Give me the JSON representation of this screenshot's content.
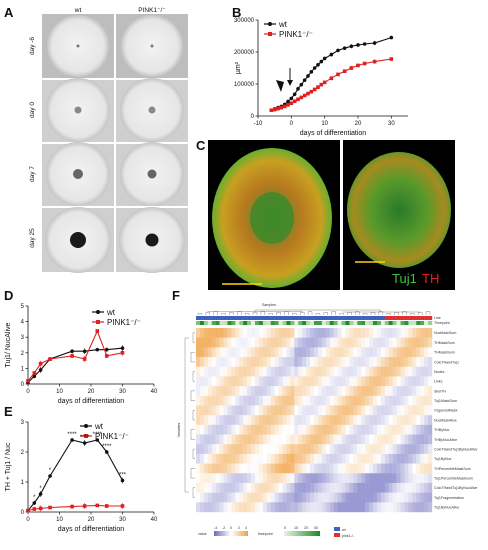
{
  "panel_labels": {
    "a": "A",
    "b": "B",
    "c": "C",
    "d": "D",
    "e": "E",
    "f": "F"
  },
  "panel_a": {
    "columns": [
      "wt",
      "PINK1⁻/⁻"
    ],
    "rows": [
      "day -6",
      "day 0",
      "day 7",
      "day 25"
    ]
  },
  "panel_c": {
    "label_green": "Tuj1",
    "label_red": "TH",
    "green": "#3cc43c",
    "red": "#e82020"
  },
  "panel_f": {
    "samples_label": "Samples",
    "variables_label": "Variables",
    "row_labels": [
      "NucMaskSum",
      "THMaskSum",
      "THMaskSum",
      "ColoTHandTuj1",
      "Nodes",
      "Links",
      "SkelTH",
      "Tuj1MaskSum",
      "OrganoidMask",
      "NucMaskAlive",
      "THByNuc",
      "THByNucAlive",
      "ColoTHandTuj1ByNucAlive",
      "Tuj1ByNuc",
      "THPercentileMaskSum",
      "Tuj1PercentileMaskSum",
      "ColoTHandTuj1ByNucAlive",
      "Tuj1Fragmentation",
      "Tuj1ByNucAlive"
    ],
    "annotation_labels": [
      "Line",
      "Timepoint"
    ],
    "value_legend": {
      "label": "value",
      "ticks": [
        "-4",
        "-2",
        "0",
        "2",
        "4"
      ]
    },
    "timepoint_legend": {
      "label": "timepoint",
      "ticks": [
        "0",
        "10",
        "20",
        "30"
      ]
    },
    "line_legend": [
      "wt",
      "pink1-/-"
    ],
    "colors": {
      "wt": "#4060c0",
      "pink1": "#e03030",
      "low": "#7f7fc8",
      "high": "#f0a040"
    }
  },
  "chart_data": [
    {
      "type": "line",
      "panel": "B",
      "xlabel": "days of differentiation",
      "ylabel": "µm²",
      "xlim": [
        -10,
        35
      ],
      "ylim": [
        0,
        300000
      ],
      "xticks": [
        "-10",
        "0",
        "10",
        "20",
        "30"
      ],
      "yticks": [
        "0",
        "100000",
        "200000",
        "300000"
      ],
      "legend": "top-left",
      "series": [
        {
          "name": "wt",
          "color": "#111111",
          "x": [
            -6,
            -5,
            -4,
            -3,
            -2,
            -1,
            0,
            1,
            2,
            3,
            4,
            5,
            6,
            7,
            8,
            9,
            10,
            12,
            14,
            16,
            18,
            20,
            22,
            25,
            30
          ],
          "y": [
            18000,
            22000,
            26000,
            30000,
            36000,
            45000,
            55000,
            68000,
            85000,
            98000,
            112000,
            125000,
            138000,
            150000,
            160000,
            170000,
            180000,
            192000,
            205000,
            212000,
            218000,
            222000,
            225000,
            228000,
            245000
          ]
        },
        {
          "name": "PINK1⁻/⁻",
          "color": "#e02020",
          "x": [
            -6,
            -5,
            -4,
            -3,
            -2,
            -1,
            0,
            1,
            2,
            3,
            4,
            5,
            6,
            7,
            8,
            9,
            10,
            12,
            14,
            16,
            18,
            20,
            22,
            25,
            30
          ],
          "y": [
            18000,
            20000,
            23000,
            26000,
            30000,
            35000,
            40000,
            46000,
            52000,
            58000,
            64000,
            70000,
            76000,
            83000,
            90000,
            98000,
            105000,
            118000,
            130000,
            140000,
            150000,
            158000,
            164000,
            170000,
            178000
          ]
        }
      ]
    },
    {
      "type": "line",
      "panel": "D",
      "xlabel": "days of differentiation",
      "ylabel": "Tuj1/ NucAlive",
      "xlim": [
        0,
        40
      ],
      "ylim": [
        0,
        5
      ],
      "xticks": [
        "0",
        "10",
        "20",
        "30",
        "40"
      ],
      "yticks": [
        "0",
        "1",
        "2",
        "3",
        "4",
        "5"
      ],
      "legend": "top-right",
      "series": [
        {
          "name": "wt",
          "color": "#111111",
          "x": [
            0,
            2,
            4,
            7,
            14,
            18,
            22,
            25,
            30
          ],
          "y": [
            0.1,
            0.5,
            0.9,
            1.6,
            2.1,
            2.1,
            2.2,
            2.2,
            2.3
          ]
        },
        {
          "name": "PINK1⁻/⁻",
          "color": "#e02020",
          "x": [
            0,
            2,
            4,
            7,
            14,
            18,
            22,
            25,
            30
          ],
          "y": [
            0.2,
            0.7,
            1.3,
            1.6,
            1.8,
            1.6,
            3.4,
            1.8,
            2.0
          ]
        }
      ]
    },
    {
      "type": "line",
      "panel": "E",
      "xlabel": "days of differentiation",
      "ylabel": "TH + Tuj1 / Nuc",
      "xlim": [
        0,
        40
      ],
      "ylim": [
        0,
        3
      ],
      "xticks": [
        "0",
        "10",
        "20",
        "30",
        "40"
      ],
      "yticks": [
        "0",
        "1",
        "2",
        "3"
      ],
      "legend": "top-right",
      "series": [
        {
          "name": "wt",
          "color": "#111111",
          "x": [
            0,
            2,
            4,
            7,
            14,
            18,
            22,
            25,
            30
          ],
          "y": [
            0.05,
            0.3,
            0.6,
            1.2,
            2.4,
            2.3,
            2.4,
            2.0,
            1.05
          ]
        },
        {
          "name": "PINK1⁻/⁻",
          "color": "#e02020",
          "x": [
            0,
            2,
            4,
            7,
            14,
            18,
            22,
            25,
            30
          ],
          "y": [
            0.05,
            0.1,
            0.12,
            0.15,
            0.18,
            0.2,
            0.22,
            0.2,
            0.2
          ]
        }
      ],
      "annotations": [
        {
          "x": 2,
          "y": 0.3,
          "text": "*"
        },
        {
          "x": 4,
          "y": 0.6,
          "text": "*"
        },
        {
          "x": 7,
          "y": 1.2,
          "text": "*"
        },
        {
          "x": 14,
          "y": 2.4,
          "text": "****"
        },
        {
          "x": 18,
          "y": 2.3,
          "text": "****"
        },
        {
          "x": 22,
          "y": 2.4,
          "text": "****"
        },
        {
          "x": 25,
          "y": 2.0,
          "text": "****"
        },
        {
          "x": 30,
          "y": 1.05,
          "text": "***"
        }
      ]
    }
  ]
}
